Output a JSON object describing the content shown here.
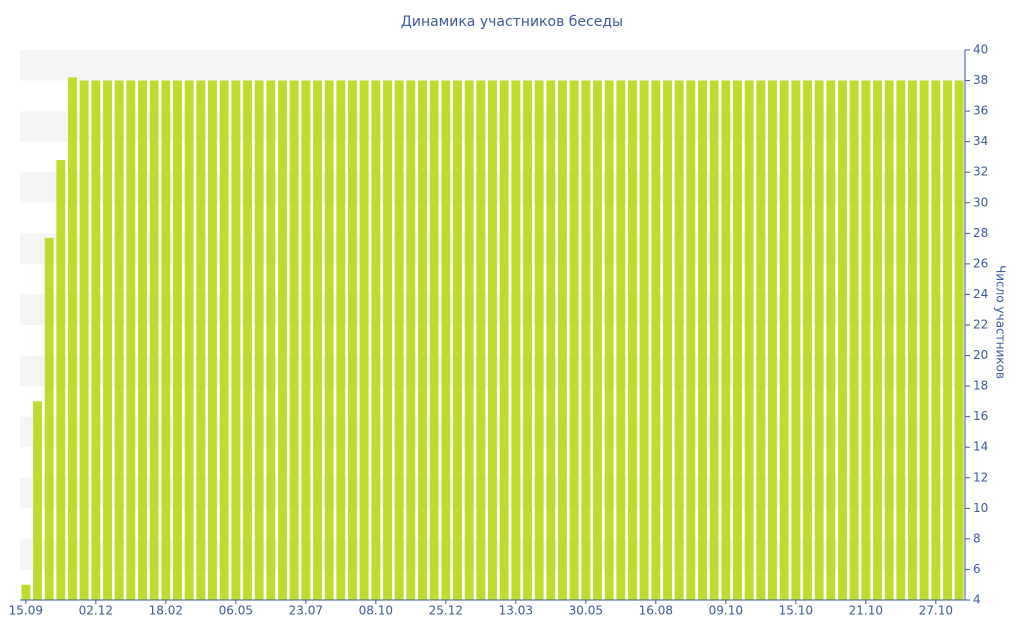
{
  "chart_data": {
    "type": "bar",
    "title": "Динамика участников беседы",
    "y_label": "Число участников",
    "categories": [
      "15.09",
      null,
      null,
      null,
      null,
      null,
      "02.12",
      null,
      null,
      null,
      null,
      null,
      "18.02",
      null,
      null,
      null,
      null,
      null,
      "06.05",
      null,
      null,
      null,
      null,
      null,
      "23.07",
      null,
      null,
      null,
      null,
      null,
      "08.10",
      null,
      null,
      null,
      null,
      null,
      "25.12",
      null,
      null,
      null,
      null,
      null,
      "13.03",
      null,
      null,
      null,
      null,
      null,
      "30.05",
      null,
      null,
      null,
      null,
      null,
      "16.08",
      null,
      null,
      null,
      null,
      null,
      "09.10",
      null,
      null,
      null,
      null,
      null,
      "15.10",
      null,
      null,
      null,
      null,
      null,
      "21.10",
      null,
      null,
      null,
      null,
      null,
      "27.10",
      null,
      null
    ],
    "values": [
      5,
      17,
      27.7,
      32.8,
      38.2,
      38,
      38,
      38,
      38,
      38,
      38,
      38,
      38,
      38,
      38,
      38,
      38,
      38,
      38,
      38,
      38,
      38,
      38,
      38,
      38,
      38,
      38,
      38,
      38,
      38,
      38,
      38,
      38,
      38,
      38,
      38,
      38,
      38,
      38,
      38,
      38,
      38,
      38,
      38,
      38,
      38,
      38,
      38,
      38,
      38,
      38,
      38,
      38,
      38,
      38,
      38,
      38,
      38,
      38,
      38,
      38,
      38,
      38,
      38,
      38,
      38,
      38,
      38,
      38,
      38,
      38,
      38,
      38,
      38,
      38,
      38,
      38,
      38,
      38,
      38,
      38
    ],
    "color": "#bedc2e",
    "ylim": [
      4,
      40
    ],
    "yticks": [
      4,
      6,
      8,
      10,
      12,
      14,
      16,
      18,
      20,
      22,
      24,
      26,
      28,
      30,
      32,
      34,
      36,
      38,
      40
    ],
    "grid": true,
    "y_axis_side": "right"
  }
}
